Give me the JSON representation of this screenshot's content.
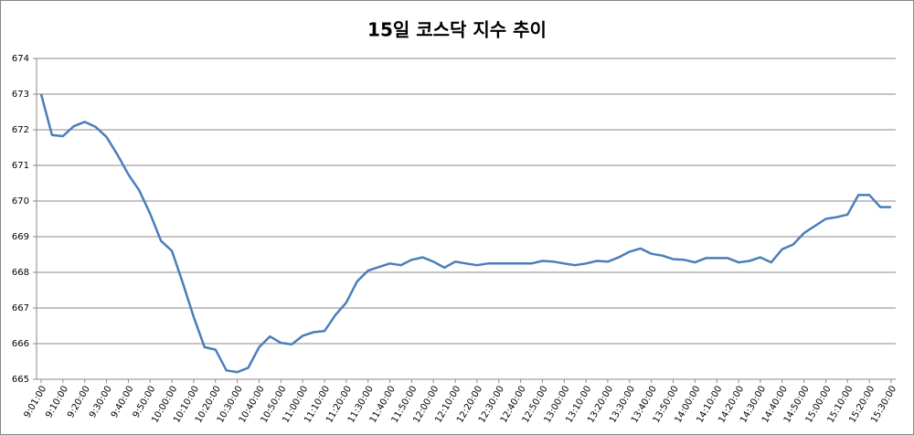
{
  "chart_data": {
    "type": "line",
    "title": "15일 코스닥 지수 추이",
    "categories": [
      "9:01:00",
      null,
      "9:10:00",
      null,
      "9:20:00",
      null,
      "9:30:00",
      null,
      "9:40:00",
      null,
      "9:50:00",
      null,
      "10:00:00",
      null,
      "10:10:00",
      null,
      "10:20:00",
      null,
      "10:30:00",
      null,
      "10:40:00",
      null,
      "10:50:00",
      null,
      "11:00:00",
      null,
      "11:10:00",
      null,
      "11:20:00",
      null,
      "11:30:00",
      null,
      "11:40:00",
      null,
      "11:50:00",
      null,
      "12:00:00",
      null,
      "12:10:00",
      null,
      "12:20:00",
      null,
      "12:30:00",
      null,
      "12:40:00",
      null,
      "12:50:00",
      null,
      "13:00:00",
      null,
      "13:10:00",
      null,
      "13:20:00",
      null,
      "13:30:00",
      null,
      "13:40:00",
      null,
      "13:50:00",
      null,
      "14:00:00",
      null,
      "14:10:00",
      null,
      "14:20:00",
      null,
      "14:30:00",
      null,
      "14:40:00",
      null,
      "14:50:00",
      null,
      "15:00:00",
      null,
      "15:10:00",
      null,
      "15:20:00",
      null,
      "15:30:00"
    ],
    "values": [
      673,
      671.85,
      671.82,
      672.1,
      672.22,
      672.08,
      671.8,
      671.3,
      670.75,
      670.3,
      669.65,
      668.88,
      668.6,
      667.7,
      666.75,
      665.9,
      665.83,
      665.25,
      665.2,
      665.32,
      665.9,
      666.2,
      666.02,
      665.98,
      666.22,
      666.32,
      666.35,
      666.8,
      667.15,
      667.75,
      668.05,
      668.15,
      668.25,
      668.2,
      668.35,
      668.42,
      668.3,
      668.13,
      668.3,
      668.25,
      668.2,
      668.25,
      668.25,
      668.25,
      668.25,
      668.25,
      668.32,
      668.3,
      668.25,
      668.2,
      668.25,
      668.32,
      668.3,
      668.42,
      668.58,
      668.67,
      668.52,
      668.47,
      668.37,
      668.35,
      668.28,
      668.4,
      668.4,
      668.4,
      668.28,
      668.32,
      668.42,
      668.28,
      668.65,
      668.78,
      669.1,
      669.3,
      669.5,
      669.55,
      669.62,
      670.17,
      670.17,
      669.83,
      669.83
    ],
    "color": "#4a7ebb",
    "ylim": [
      665,
      674
    ],
    "yticks": [
      665,
      666,
      667,
      668,
      669,
      670,
      671,
      672,
      673,
      674
    ],
    "grid": true
  }
}
